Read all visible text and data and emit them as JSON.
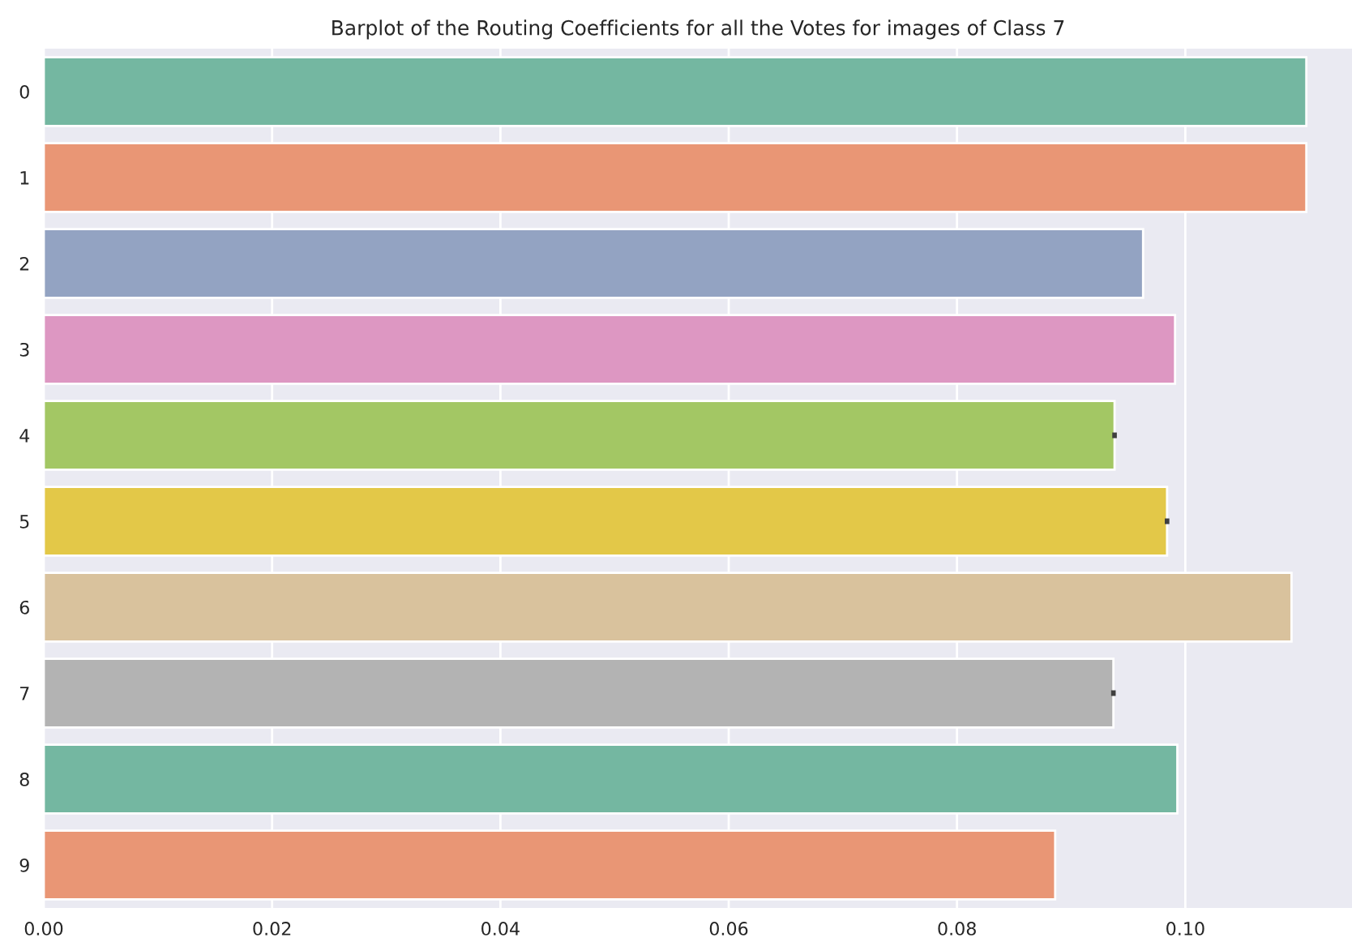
{
  "chart_data": {
    "type": "bar",
    "orientation": "horizontal",
    "title": "Barplot of the Routing Coefficients for all the Votes for images of Class 7",
    "categories": [
      "0",
      "1",
      "2",
      "3",
      "4",
      "5",
      "6",
      "7",
      "8",
      "9"
    ],
    "values": [
      0.1106,
      0.1106,
      0.0963,
      0.0991,
      0.0938,
      0.0984,
      0.1093,
      0.0937,
      0.0993,
      0.0886
    ],
    "errors": [
      null,
      null,
      null,
      null,
      0.0002,
      0.0002,
      null,
      0.0002,
      null,
      null
    ],
    "colors": [
      "#74b7a1",
      "#e99675",
      "#93a3c2",
      "#dd97c2",
      "#a3c764",
      "#e3c848",
      "#d9c29d",
      "#b3b3b3",
      "#74b7a1",
      "#e99675"
    ],
    "xlim": [
      0,
      0.1146
    ],
    "xticks": [
      {
        "value": 0,
        "label": "0.00"
      },
      {
        "value": 0.02,
        "label": "0.02"
      },
      {
        "value": 0.04,
        "label": "0.04"
      },
      {
        "value": 0.06,
        "label": "0.06"
      },
      {
        "value": 0.08,
        "label": "0.08"
      },
      {
        "value": 0.1,
        "label": "0.10"
      }
    ],
    "grid": "x"
  }
}
